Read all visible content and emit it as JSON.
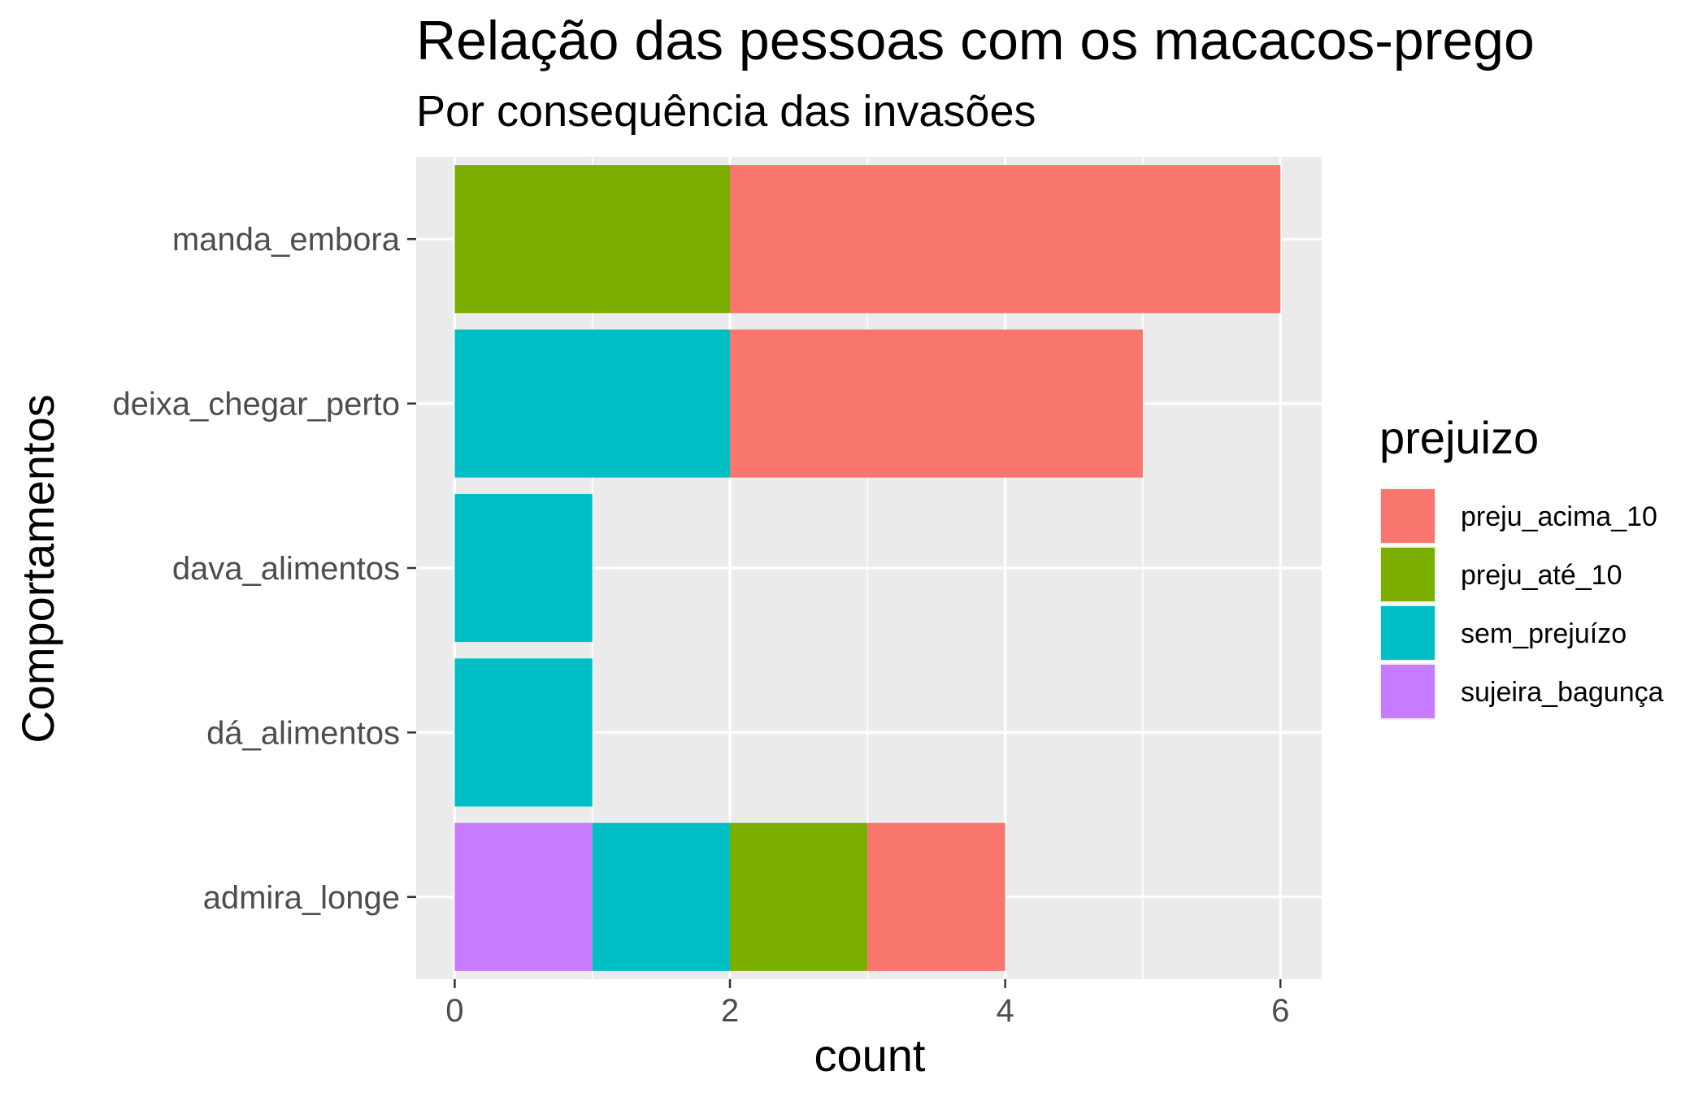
{
  "chart_data": {
    "type": "bar",
    "orientation": "horizontal",
    "stacked": true,
    "title": "Relação das pessoas com os macacos-prego",
    "subtitle": "Por consequência das invasões",
    "xlabel": "count",
    "ylabel": "Comportamentos",
    "xlim": [
      -0.28,
      6.3
    ],
    "x_ticks": [
      0,
      2,
      4,
      6
    ],
    "grid": true,
    "legend_position": "right",
    "legend_title": "prejuizo",
    "categories": [
      "manda_embora",
      "deixa_chegar_perto",
      "dava_alimentos",
      "dá_alimentos",
      "admira_longe"
    ],
    "stack_order": [
      "sujeira_bagunça",
      "sem_prejuízo",
      "preju_até_10",
      "preju_acima_10"
    ],
    "series": [
      {
        "name": "preju_acima_10",
        "color": "#F8766D",
        "values": [
          4,
          3,
          0,
          0,
          1
        ]
      },
      {
        "name": "preju_até_10",
        "color": "#7CAE00",
        "values": [
          2,
          0,
          0,
          0,
          1
        ]
      },
      {
        "name": "sem_prejuízo",
        "color": "#00BFC4",
        "values": [
          0,
          2,
          1,
          1,
          1
        ]
      },
      {
        "name": "sujeira_bagunça",
        "color": "#C77CFF",
        "values": [
          0,
          0,
          0,
          0,
          1
        ]
      }
    ],
    "colors": {
      "panel_background": "#EBEBEB",
      "grid_line": "#FFFFFF",
      "tick_text": "#4D4D4D",
      "title_text": "#000000"
    }
  }
}
